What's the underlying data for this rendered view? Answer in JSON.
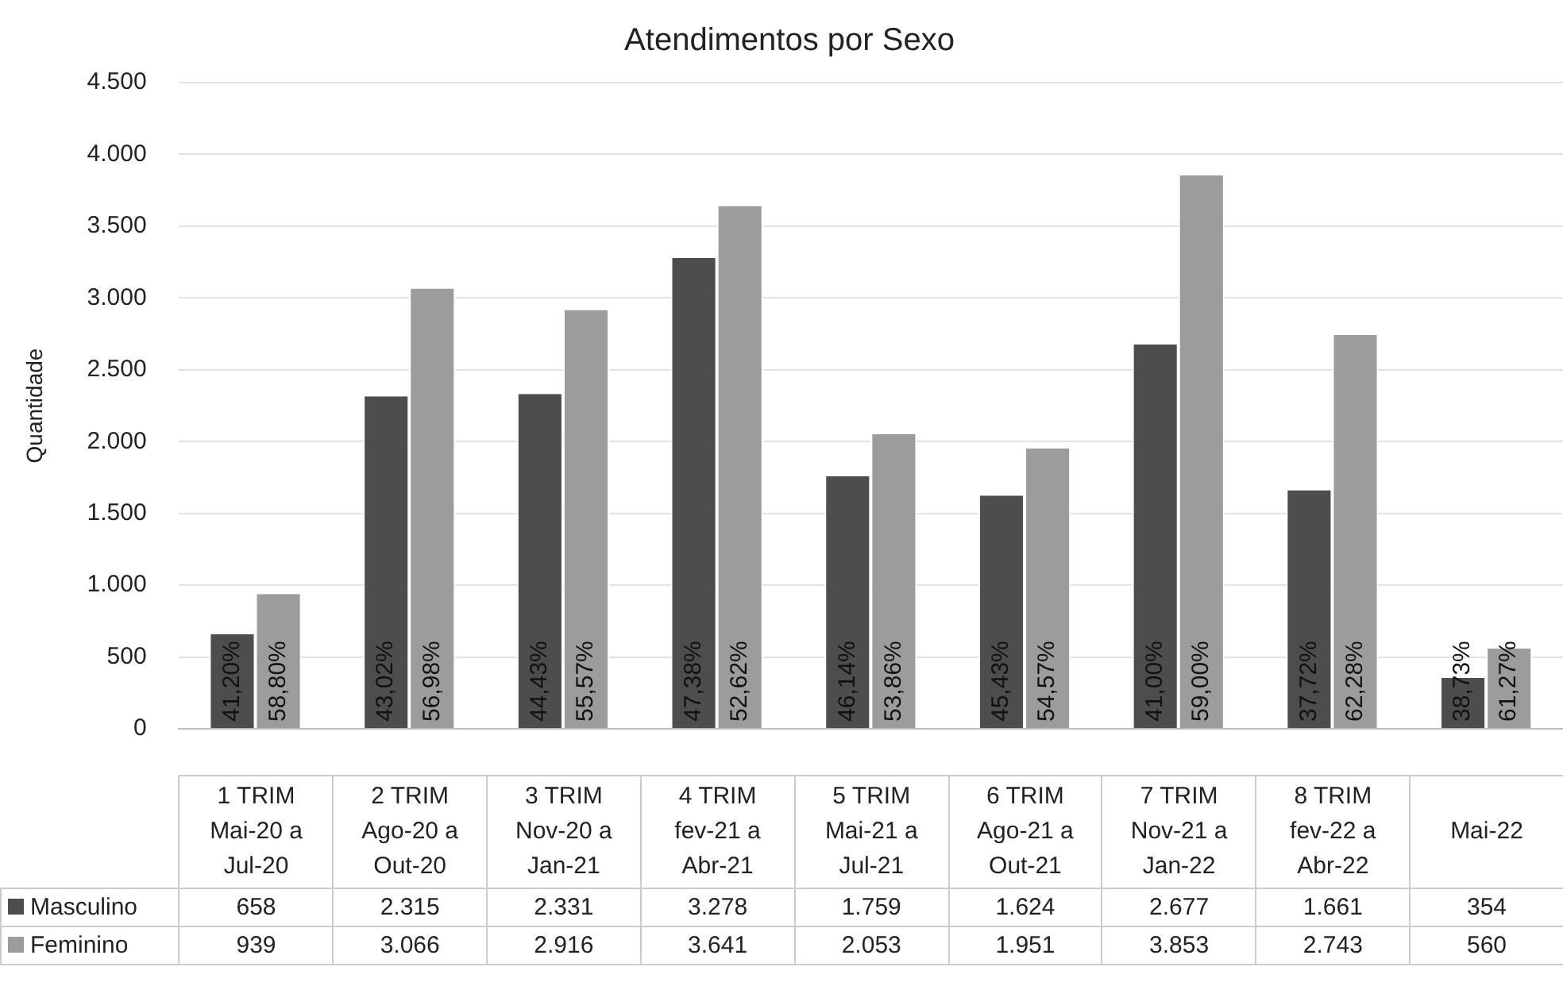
{
  "chart_data": {
    "type": "bar",
    "title": "Atendimentos por Sexo",
    "ylabel": "Quantidade",
    "categories": [
      "1 TRIM Mai-20 a Jul-20",
      "2 TRIM Ago-20 a Out-20",
      "3 TRIM Nov-20 a Jan-21",
      "4 TRIM fev-21 a Abr-21",
      "5 TRIM Mai-21 a Jul-21",
      "6 TRIM Ago-21 a Out-21",
      "7 TRIM Nov-21 a Jan-22",
      "8 TRIM fev-22 a Abr-22",
      "Mai-22"
    ],
    "series": [
      {
        "name": "Masculino",
        "color": "#4d4d4d",
        "values": [
          658,
          2315,
          2331,
          3278,
          1759,
          1624,
          2677,
          1661,
          354
        ],
        "value_labels": [
          "658",
          "2.315",
          "2.331",
          "3.278",
          "1.759",
          "1.624",
          "2.677",
          "1.661",
          "354"
        ]
      },
      {
        "name": "Feminino",
        "color": "#9c9c9c",
        "values": [
          939,
          3066,
          2916,
          3641,
          2053,
          1951,
          3853,
          2743,
          560
        ],
        "value_labels": [
          "939",
          "3.066",
          "2.916",
          "3.641",
          "2.053",
          "1.951",
          "3.853",
          "2.743",
          "560"
        ]
      }
    ],
    "annotations": [
      "41,20%",
      "58,80%",
      "43,02%",
      "56,98%",
      "44,43%",
      "55,57%",
      "47,38%",
      "52,62%",
      "46,14%",
      "53,86%",
      "45,43%",
      "54,57%",
      "41,00%",
      "59,00%",
      "37,72%",
      "62,28%",
      "38,73%",
      "61,27%"
    ],
    "ylim": [
      0,
      4500
    ],
    "yticks": [
      {
        "value": 0,
        "label": "0"
      },
      {
        "value": 500,
        "label": "500"
      },
      {
        "value": 1000,
        "label": "1.000"
      },
      {
        "value": 1500,
        "label": "1.500"
      },
      {
        "value": 2000,
        "label": "2.000"
      },
      {
        "value": 2500,
        "label": "2.500"
      },
      {
        "value": 3000,
        "label": "3.000"
      },
      {
        "value": 3500,
        "label": "3.500"
      },
      {
        "value": 4000,
        "label": "4.000"
      },
      {
        "value": 4500,
        "label": "4.500"
      }
    ],
    "grid": "y",
    "legend": "bottom"
  }
}
